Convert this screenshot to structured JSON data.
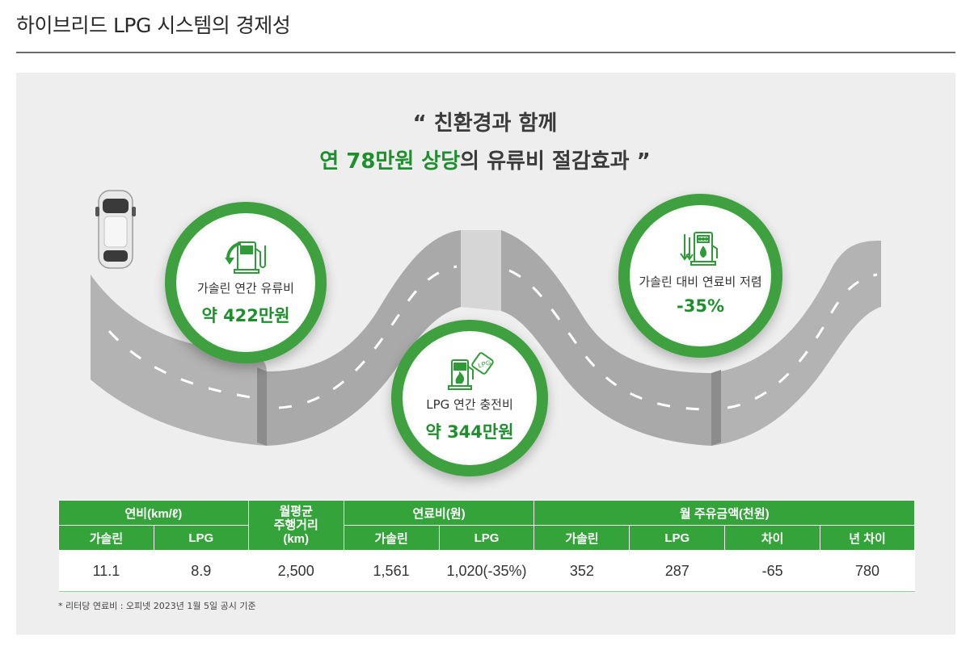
{
  "page": {
    "title": "하이브리드 LPG 시스템의 경제성"
  },
  "headline": {
    "line1": "“ 친환경과 함께",
    "line2_highlight": "연 78만원 상당",
    "line2_rest": "의 유류비 절감효과 ”"
  },
  "circles": [
    {
      "label": "가솔린 연간 유류비",
      "value": "약 422만원",
      "icon": "fuel-pump-icon"
    },
    {
      "label": "LPG 연간 충전비",
      "value": "약 344만원",
      "icon": "lpg-station-icon"
    },
    {
      "label": "가솔린 대비 연료비 저렴",
      "value": "-35%",
      "icon": "fuel-savings-icon"
    }
  ],
  "table": {
    "group_headers": {
      "efficiency": "연비(km/ℓ)",
      "distance": "월평균\n주행거리\n(km)",
      "fuel_cost": "연료비(원)",
      "monthly": "월 주유금액(천원)"
    },
    "sub_headers": {
      "gasoline": "가솔린",
      "lpg": "LPG",
      "diff": "차이",
      "year_diff": "년 차이"
    },
    "row": {
      "eff_gasoline": "11.1",
      "eff_lpg": "8.9",
      "distance": "2,500",
      "cost_gasoline": "1,561",
      "cost_lpg": "1,020(-35%)",
      "monthly_gasoline": "352",
      "monthly_lpg": "287",
      "monthly_diff": "-65",
      "year_diff": "780"
    }
  },
  "footnote": "* 리터당 연료비 : 오피넷 2023년 1월 5일 공시 기준",
  "colors": {
    "accent": "#1f8f2e",
    "header_green": "#34a33a",
    "circle_ring": "#3ea03f",
    "road": "#b0b0b0"
  }
}
